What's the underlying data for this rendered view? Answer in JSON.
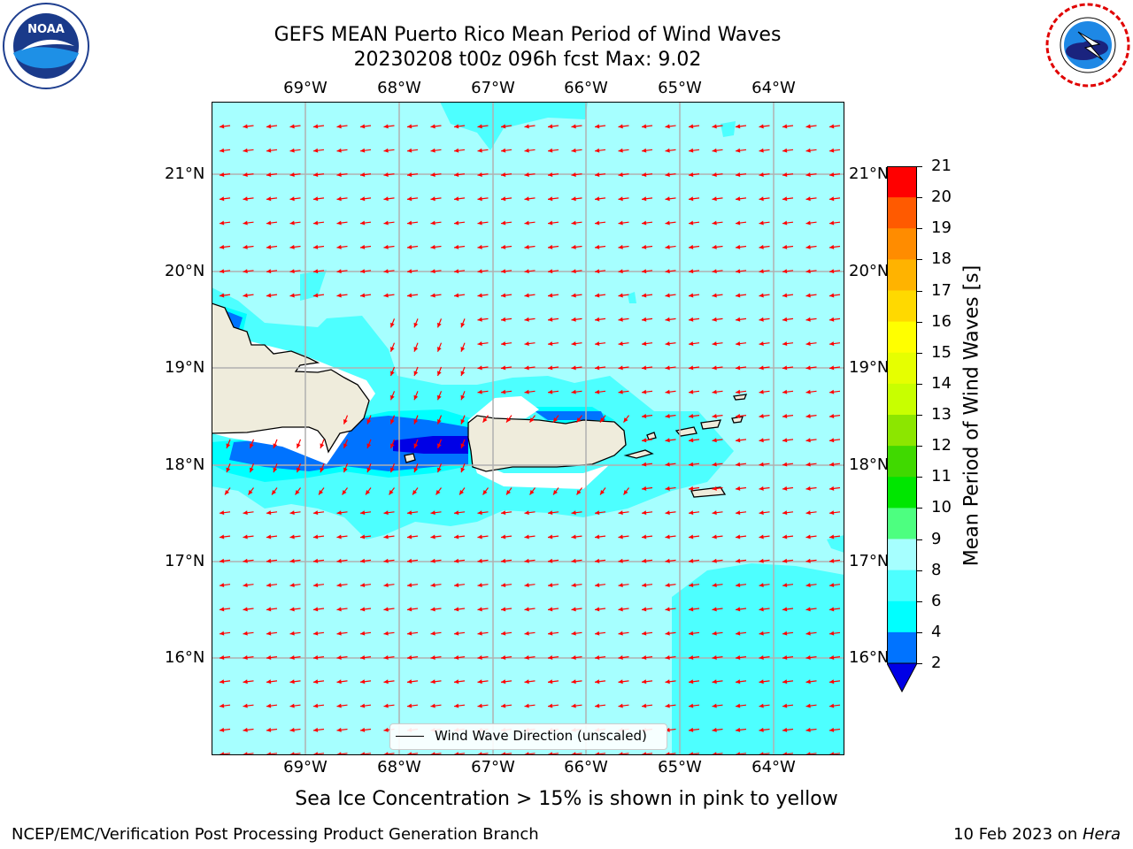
{
  "title": {
    "line1": "GEFS MEAN Puerto Rico Mean Period of Wind Waves",
    "line2": "20230208 t00z 096h fcst   Max: 9.02"
  },
  "logos": {
    "noaa": {
      "text": "NOAA",
      "icon": "noaa-logo-icon"
    },
    "nws": {
      "icon": "nws-logo-icon"
    }
  },
  "map": {
    "lon_labels": [
      "69°W",
      "68°W",
      "67°W",
      "66°W",
      "65°W",
      "64°W"
    ],
    "lat_labels": [
      "21°N",
      "20°N",
      "19°N",
      "18°N",
      "17°N",
      "16°N"
    ],
    "legend_label": "Wind Wave Direction (unscaled)",
    "arrow_color": "#ff0000",
    "land_color": "#efecdc",
    "colors": {
      "level_6_8": "#4dffff",
      "level_8_9": "#a6ffff",
      "level_4_6": "#00ffff",
      "level_2_4": "#0073ff",
      "below_2": "#0000e6"
    }
  },
  "colorbar": {
    "title": "Mean Period of Wind Waves [s]",
    "ticks": [
      "2",
      "4",
      "6",
      "8",
      "9",
      "10",
      "11",
      "12",
      "13",
      "14",
      "15",
      "16",
      "17",
      "18",
      "19",
      "20",
      "21"
    ],
    "colors": [
      "#0073ff",
      "#00ffff",
      "#4dffff",
      "#a6ffff",
      "#4dff80",
      "#00e600",
      "#40d900",
      "#8ce600",
      "#c8ff00",
      "#e6ff00",
      "#ffff00",
      "#ffd900",
      "#ffb300",
      "#ff8c00",
      "#ff5a00",
      "#ff2d00",
      "#ff0000"
    ],
    "under_color": "#0000e6"
  },
  "note": "Sea Ice Concentration > 15% is shown in pink to yellow",
  "footer": {
    "left": "NCEP/EMC/Verification Post Processing Product Generation Branch",
    "right_date": "10 Feb 2023 on ",
    "right_host": "Hera"
  }
}
